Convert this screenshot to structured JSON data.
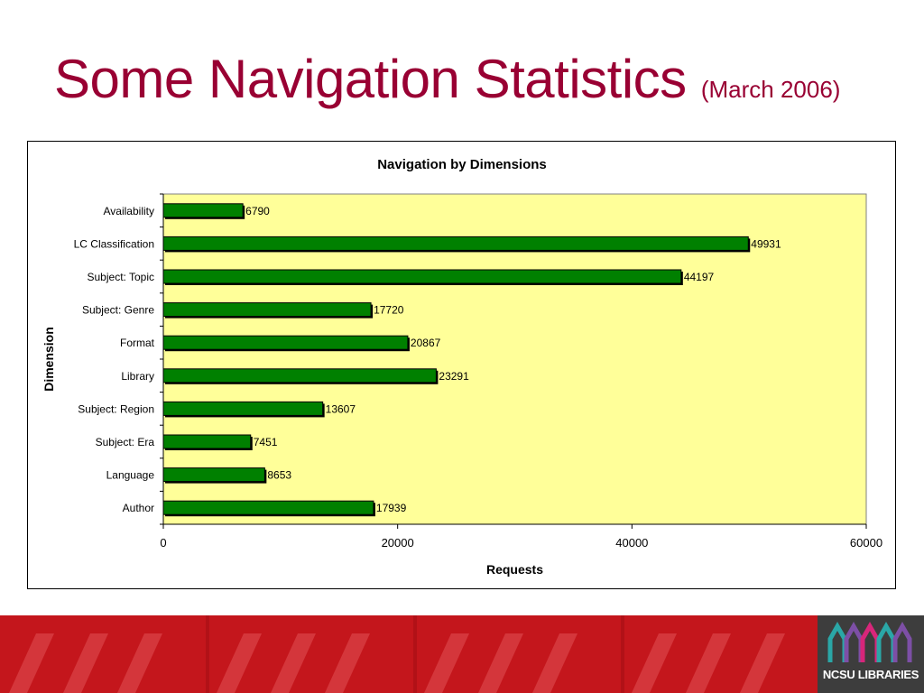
{
  "slide": {
    "title": "Some Navigation Statistics",
    "subtitle": "(March 2006)",
    "brand": "NCSU LIBRARIES"
  },
  "colors": {
    "title": "#990033",
    "bar_fill": "#008000",
    "plot_background": "#ffff99",
    "footer": "#c4161c",
    "brand_box": "#3d3d3d"
  },
  "chart_data": {
    "type": "bar",
    "orientation": "horizontal",
    "title": "Navigation by Dimensions",
    "xlabel": "Requests",
    "ylabel": "Dimension",
    "categories": [
      "Availability",
      "LC Classification",
      "Subject: Topic",
      "Subject: Genre",
      "Format",
      "Library",
      "Subject: Region",
      "Subject: Era",
      "Language",
      "Author"
    ],
    "values": [
      6790,
      49931,
      44197,
      17720,
      20867,
      23291,
      13607,
      7451,
      8653,
      17939
    ],
    "xlim": [
      0,
      60000
    ],
    "xticks": [
      "0",
      "20000",
      "40000",
      "60000"
    ],
    "data_labels": true,
    "grid": false,
    "legend": "none"
  }
}
